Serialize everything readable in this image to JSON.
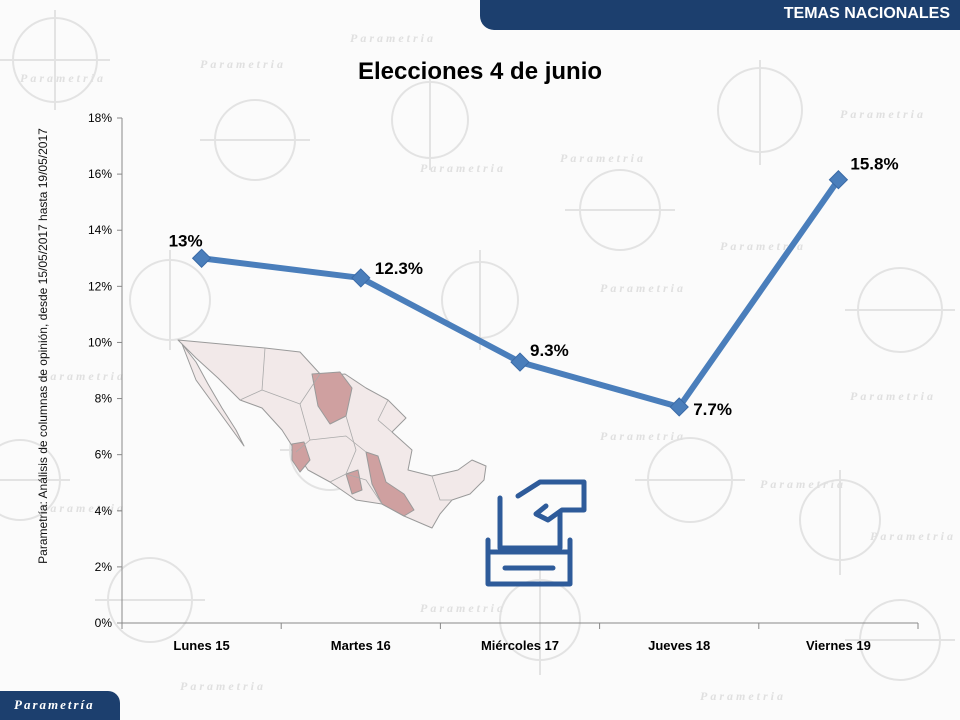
{
  "header": {
    "section_label": "TEMAS NACIONALES"
  },
  "footer": {
    "logo_text": "Parametría"
  },
  "chart_data": {
    "type": "line",
    "title": "Elecciones 4 de junio",
    "ylabel": "Parametría: Análisis de columnas de opinión, desde 15/05/2017 hasta 19/05/2017",
    "xlabel": "",
    "categories": [
      "Lunes 15",
      "Martes 16",
      "Miércoles 17",
      "Jueves 18",
      "Viernes 19"
    ],
    "values": [
      13,
      12.3,
      9.3,
      7.7,
      15.8
    ],
    "data_labels": [
      "13%",
      "12.3%",
      "9.3%",
      "7.7%",
      "15.8%"
    ],
    "y_ticks": [
      "0%",
      "2%",
      "4%",
      "6%",
      "8%",
      "10%",
      "12%",
      "14%",
      "16%",
      "18%"
    ],
    "ylim": [
      0,
      18
    ],
    "grid": false,
    "line_color": "#4a7ebb"
  }
}
